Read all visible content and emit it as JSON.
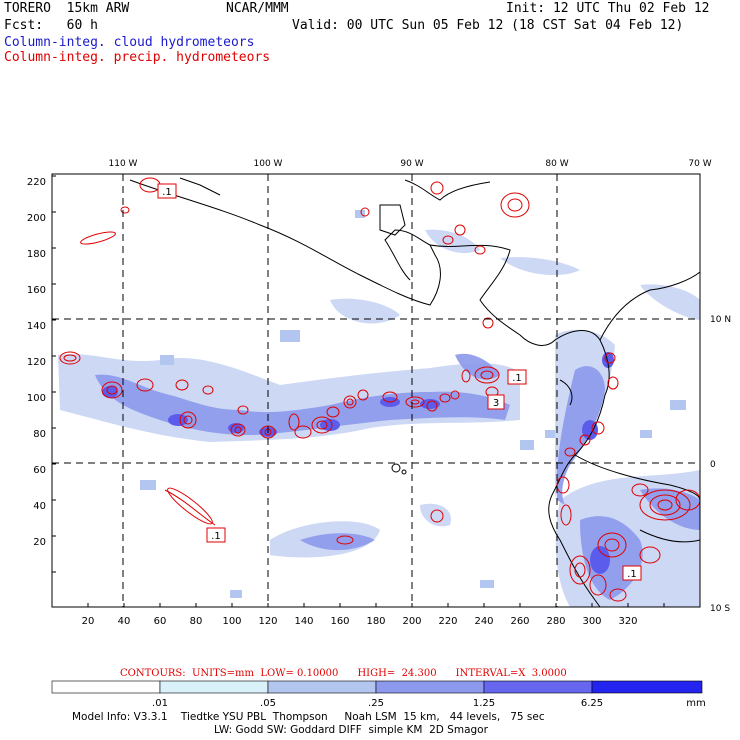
{
  "header": {
    "model": "TORERO  15km ARW",
    "org": "NCAR/MMM",
    "init": "Init: 12 UTC Thu 02 Feb 12",
    "fcst": "Fcst:   60 h",
    "valid": "Valid: 00 UTC Sun 05 Feb 12 (18 CST Sat 04 Feb 12)",
    "field1": "Column-integ. cloud hydrometeors",
    "field2": "Column-integ. precip. hydrometeors"
  },
  "map": {
    "lon_labels": [
      "110 W",
      "100 W",
      "90 W",
      "80 W",
      "70 W"
    ],
    "lat_labels": [
      "10 N",
      "0",
      "10 S"
    ],
    "x_ticks": [
      "20",
      "40",
      "60",
      "80",
      "100",
      "120",
      "140",
      "160",
      "180",
      "200",
      "220",
      "240",
      "260",
      "280",
      "300",
      "320"
    ],
    "y_ticks": [
      "220",
      "200",
      "180",
      "160",
      "140",
      "120",
      "100",
      "80",
      "60",
      "40",
      "20"
    ],
    "contour_labels": [
      ".1",
      ".1",
      "3",
      ".1",
      ".1"
    ]
  },
  "legend": {
    "contours_text": "CONTOURS:  UNITS=mm  LOW= 0.10000      HIGH=  24.300      INTERVAL=X  3.0000",
    "bins": [
      ".01",
      ".05",
      ".25",
      "1.25",
      "6.25"
    ],
    "unit": "mm",
    "colors": [
      "#ffffff",
      "#d9f2fa",
      "#b3c6f0",
      "#8c99ec",
      "#6666ee",
      "#2424f0"
    ]
  },
  "footer": {
    "line1": "Model Info: V3.3.1    Tiedtke YSU PBL  Thompson     Noah LSM  15 km,   44 levels,   75 sec",
    "line2": "LW: Godd SW: Goddard DIFF  simple KM  2D Smagor"
  }
}
